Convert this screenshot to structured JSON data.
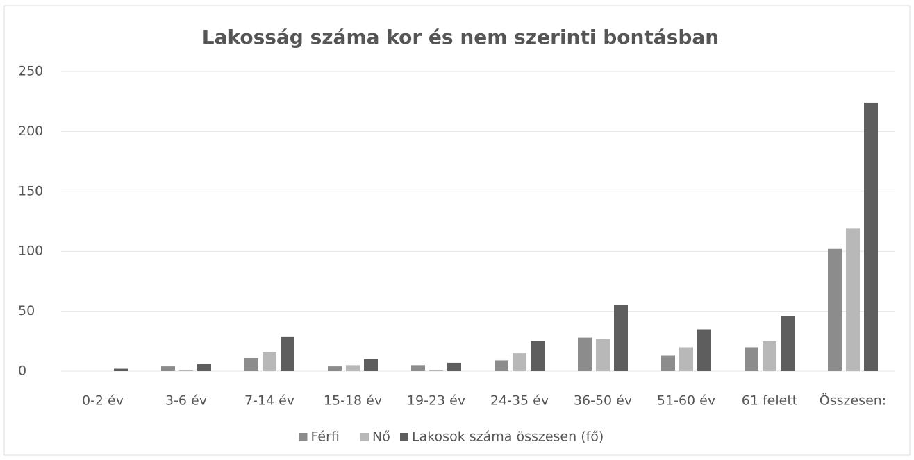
{
  "chart_data": {
    "type": "bar",
    "title": "Lakosság száma kor és nem szerinti bontásban",
    "categories": [
      "0-2 év",
      "3-6 év",
      "7-14 év",
      "15-18 év",
      "19-23 év",
      "24-35 év",
      "36-50 év",
      "51-60 év",
      "61 felett",
      "Összesen:"
    ],
    "series": [
      {
        "name": "Férfi",
        "color": "#8c8c8c",
        "values": [
          0,
          4,
          11,
          4,
          5,
          9,
          28,
          13,
          20,
          102
        ]
      },
      {
        "name": "Nő",
        "color": "#b8b8b8",
        "values": [
          0,
          1,
          16,
          5,
          1,
          15,
          27,
          20,
          25,
          119
        ]
      },
      {
        "name": "Lakosok száma összesen (fő)",
        "color": "#5e5e5e",
        "values": [
          2,
          6,
          29,
          10,
          7,
          25,
          55,
          35,
          46,
          224
        ]
      }
    ],
    "ylim": [
      0,
      250
    ],
    "yticks": [
      0,
      50,
      100,
      150,
      200,
      250
    ],
    "grid": true,
    "legend": "bottom"
  }
}
